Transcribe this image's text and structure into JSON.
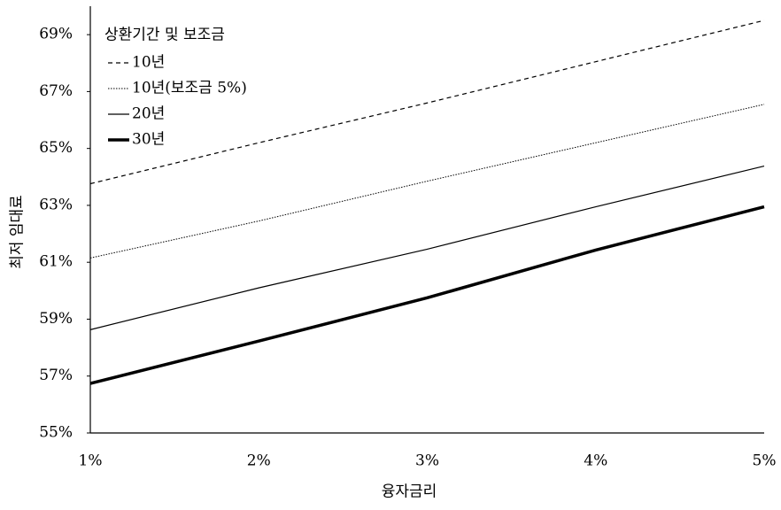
{
  "chart_data": {
    "type": "line",
    "x_label": "융자금리",
    "y_label": "최저 임대료",
    "categories": [
      "1%",
      "2%",
      "3%",
      "4%",
      "5%"
    ],
    "legend_title": "상환기간 및 보조금",
    "legend": "top-left",
    "series": [
      {
        "name": "10년",
        "color": "#000000",
        "style": "dashed",
        "values": [
          63.76,
          65.2,
          66.6,
          68.05,
          69.5
        ]
      },
      {
        "name": "10년(보조금 5%)",
        "color": "#000000",
        "style": "dotted",
        "values": [
          61.15,
          62.45,
          63.85,
          65.2,
          66.55
        ]
      },
      {
        "name": "20년",
        "color": "#000000",
        "style": "solid",
        "values": [
          58.63,
          60.1,
          61.46,
          62.95,
          64.38
        ]
      },
      {
        "name": "30년",
        "color": "#000000",
        "style": "thick",
        "values": [
          56.74,
          58.23,
          59.75,
          61.43,
          62.95
        ]
      }
    ],
    "ylim": [
      55,
      70
    ],
    "yticks": [
      {
        "value": 55,
        "label": "55%"
      },
      {
        "value": 57,
        "label": "57%"
      },
      {
        "value": 59,
        "label": "59%"
      },
      {
        "value": 61,
        "label": "61%"
      },
      {
        "value": 63,
        "label": "63%"
      },
      {
        "value": 65,
        "label": "65%"
      },
      {
        "value": 67,
        "label": "67%"
      },
      {
        "value": 69,
        "label": "69%"
      }
    ],
    "grid": false
  }
}
